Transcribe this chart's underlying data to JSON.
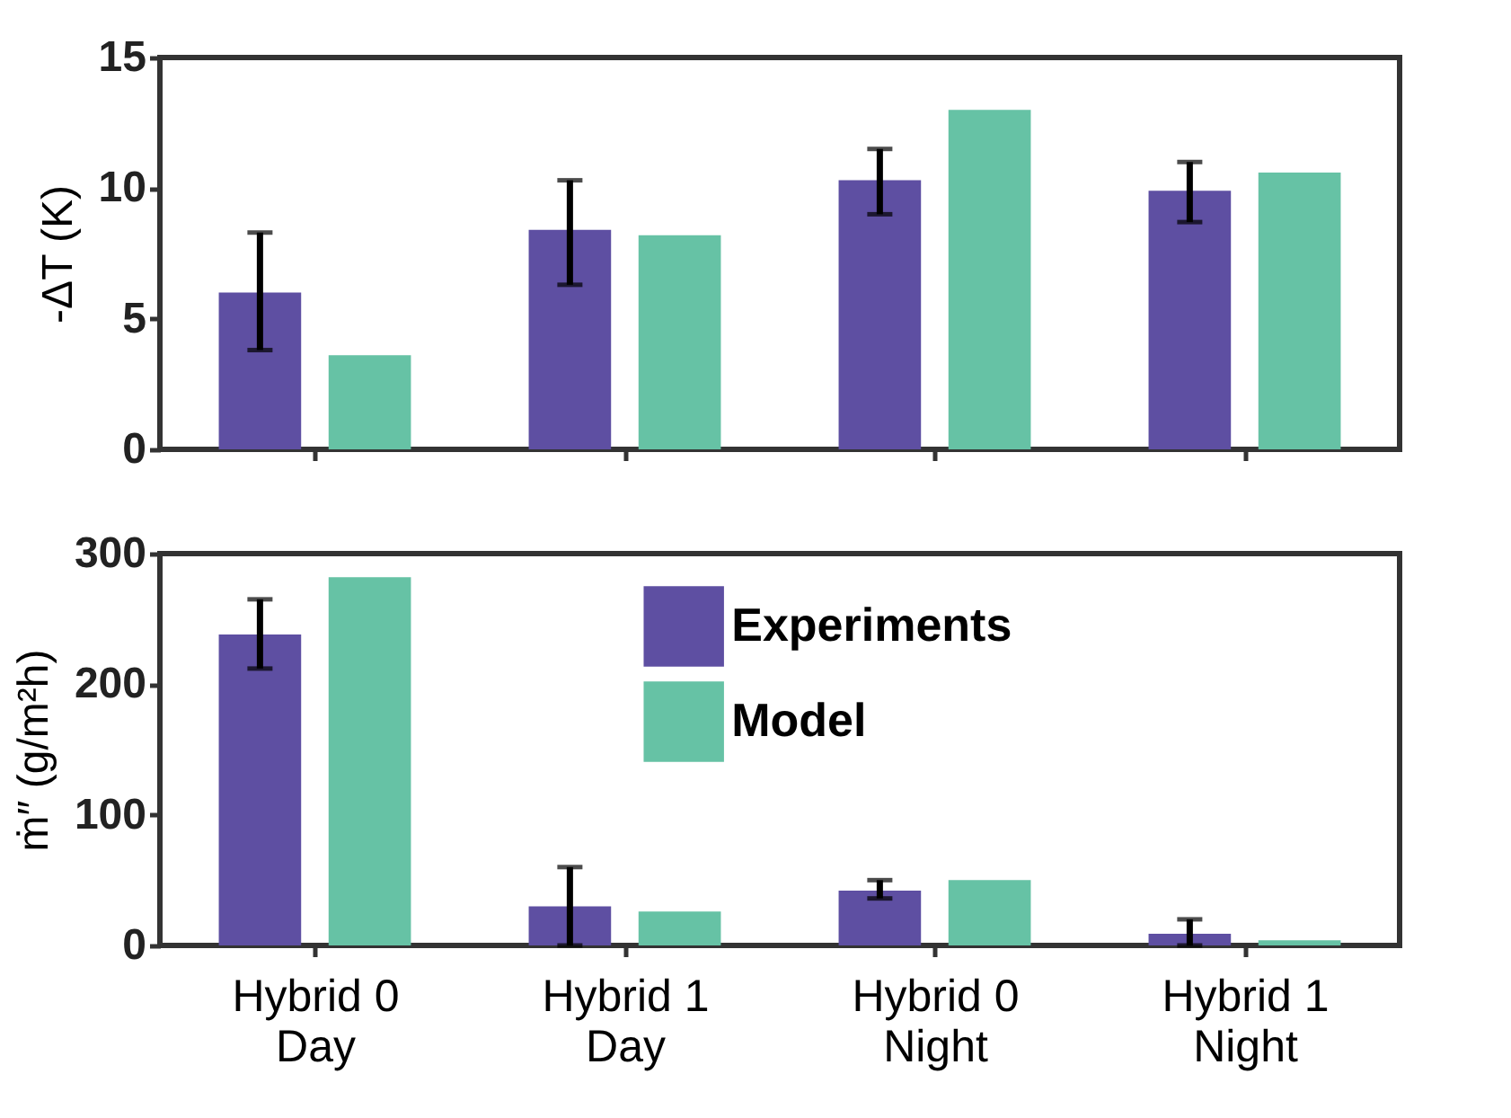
{
  "chart_data": [
    {
      "type": "bar",
      "ylabel": "-ΔT (K)",
      "categories": [
        null,
        null,
        null,
        null
      ],
      "ylim": [
        0,
        15
      ],
      "yticks": [
        0,
        5,
        10,
        15
      ],
      "tick_labels": "y",
      "grid": false,
      "legend": false,
      "series": [
        {
          "color": "#5e4fa2",
          "values": [
            6.0,
            8.4,
            10.3,
            9.9
          ],
          "errors": [
            [
              3.8,
              8.3
            ],
            [
              6.3,
              10.3
            ],
            [
              9.0,
              11.5
            ],
            [
              8.7,
              11.0
            ]
          ]
        },
        {
          "color": "#66c2a5",
          "values": [
            3.6,
            8.2,
            13.0,
            10.6
          ],
          "errors": [
            null,
            null,
            null,
            null
          ]
        }
      ]
    },
    {
      "type": "bar",
      "ylabel": "ṁ″ (g/m²h)",
      "categories": [
        "Hybrid 0\nDay",
        "Hybrid 1\nDay",
        "Hybrid 0\nNight",
        "Hybrid 1\nNight"
      ],
      "ylim": [
        0,
        300
      ],
      "yticks": [
        0,
        100,
        200,
        300
      ],
      "grid": false,
      "legend": "top",
      "series": [
        {
          "name": "Experiments",
          "color": "#5e4fa2",
          "values": [
            238,
            30,
            42,
            9
          ],
          "errors": [
            [
              212,
              265
            ],
            [
              0,
              60
            ],
            [
              36,
              50
            ],
            [
              0,
              20
            ]
          ]
        },
        {
          "name": "Model",
          "color": "#66c2a5",
          "values": [
            282,
            26,
            50,
            4
          ],
          "errors": [
            null,
            null,
            null,
            null
          ]
        }
      ]
    }
  ]
}
